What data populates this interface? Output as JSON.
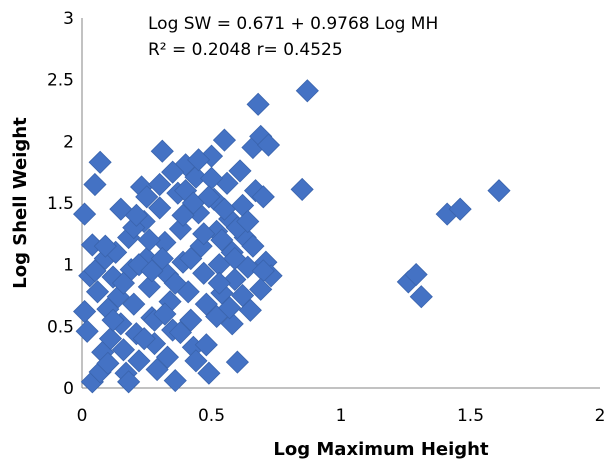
{
  "chart_data": {
    "type": "scatter",
    "title": "",
    "xlabel": "Log Maximum Height",
    "ylabel": "Log Shell Weight",
    "xlim": [
      0,
      2
    ],
    "ylim": [
      0,
      3
    ],
    "x_ticks": [
      "0",
      "0.5",
      "1",
      "1.5",
      "2"
    ],
    "y_ticks": [
      "0",
      "0.5",
      "1",
      "1.5",
      "2",
      "2.5",
      "3"
    ],
    "grid": false,
    "legend": "none",
    "marker": "diamond",
    "color": "#4472C4",
    "annotations": {
      "equation": "Log  SW = 0.671 + 0.9768 Log MH",
      "stats": "R² = 0.2048 r= 0.4525"
    },
    "series": [
      {
        "points": [
          [
            0.01,
            1.41
          ],
          [
            0.03,
            0.91
          ],
          [
            0.01,
            0.62
          ],
          [
            0.02,
            0.46
          ],
          [
            0.04,
            0.05
          ],
          [
            0.05,
            1.65
          ],
          [
            0.07,
            1.83
          ],
          [
            0.04,
            1.16
          ],
          [
            0.06,
            0.78
          ],
          [
            0.08,
            0.29
          ],
          [
            0.07,
            0.13
          ],
          [
            0.09,
            1.05
          ],
          [
            0.1,
            0.64
          ],
          [
            0.11,
            0.4
          ],
          [
            0.12,
            0.9
          ],
          [
            0.13,
            1.1
          ],
          [
            0.14,
            0.74
          ],
          [
            0.15,
            0.52
          ],
          [
            0.16,
            0.31
          ],
          [
            0.17,
            0.12
          ],
          [
            0.18,
            1.22
          ],
          [
            0.19,
            0.96
          ],
          [
            0.2,
            0.68
          ],
          [
            0.21,
            0.44
          ],
          [
            0.22,
            0.22
          ],
          [
            0.23,
            1.63
          ],
          [
            0.24,
            1.35
          ],
          [
            0.25,
            1.05
          ],
          [
            0.26,
            0.82
          ],
          [
            0.27,
            0.57
          ],
          [
            0.28,
            0.36
          ],
          [
            0.29,
            0.15
          ],
          [
            0.3,
            1.46
          ],
          [
            0.31,
            1.92
          ],
          [
            0.32,
            1.18
          ],
          [
            0.33,
            0.92
          ],
          [
            0.34,
            0.7
          ],
          [
            0.35,
            0.47
          ],
          [
            0.36,
            0.06
          ],
          [
            0.37,
            1.58
          ],
          [
            0.38,
            1.29
          ],
          [
            0.39,
            1.02
          ],
          [
            0.4,
            1.81
          ],
          [
            0.41,
            0.78
          ],
          [
            0.42,
            0.55
          ],
          [
            0.43,
            0.33
          ],
          [
            0.44,
            1.71
          ],
          [
            0.45,
            1.42
          ],
          [
            0.46,
            1.15
          ],
          [
            0.47,
            0.93
          ],
          [
            0.48,
            0.68
          ],
          [
            0.49,
            0.12
          ],
          [
            0.5,
            1.88
          ],
          [
            0.51,
            1.53
          ],
          [
            0.52,
            1.27
          ],
          [
            0.53,
            1.0
          ],
          [
            0.54,
            0.77
          ],
          [
            0.55,
            2.01
          ],
          [
            0.56,
            1.66
          ],
          [
            0.57,
            1.37
          ],
          [
            0.58,
            1.1
          ],
          [
            0.59,
            0.88
          ],
          [
            0.6,
            0.21
          ],
          [
            0.61,
            1.76
          ],
          [
            0.62,
            1.48
          ],
          [
            0.63,
            1.22
          ],
          [
            0.64,
            0.98
          ],
          [
            0.65,
            0.63
          ],
          [
            0.66,
            1.95
          ],
          [
            0.67,
            1.6
          ],
          [
            0.68,
            2.3
          ],
          [
            0.69,
            2.04
          ],
          [
            0.7,
            1.55
          ],
          [
            0.71,
            1.02
          ],
          [
            0.72,
            1.97
          ],
          [
            0.73,
            0.91
          ],
          [
            0.85,
            1.61
          ],
          [
            0.87,
            2.41
          ],
          [
            0.15,
            1.45
          ],
          [
            0.2,
            1.3
          ],
          [
            0.25,
            1.55
          ],
          [
            0.3,
            1.65
          ],
          [
            0.35,
            1.75
          ],
          [
            0.4,
            1.6
          ],
          [
            0.45,
            1.85
          ],
          [
            0.5,
            1.7
          ],
          [
            0.55,
            1.45
          ],
          [
            0.6,
            1.3
          ],
          [
            0.1,
            0.2
          ],
          [
            0.18,
            0.05
          ],
          [
            0.24,
            0.4
          ],
          [
            0.28,
            0.55
          ],
          [
            0.33,
            0.25
          ],
          [
            0.38,
            0.45
          ],
          [
            0.44,
            0.22
          ],
          [
            0.48,
            0.35
          ],
          [
            0.52,
            0.58
          ],
          [
            0.58,
            0.52
          ],
          [
            0.05,
            0.95
          ],
          [
            0.09,
            1.15
          ],
          [
            0.12,
            0.55
          ],
          [
            0.16,
            0.85
          ],
          [
            0.22,
            1.0
          ],
          [
            0.26,
            1.2
          ],
          [
            0.31,
            1.05
          ],
          [
            0.36,
            0.85
          ],
          [
            0.42,
            1.05
          ],
          [
            0.47,
            1.25
          ],
          [
            0.53,
            0.85
          ],
          [
            0.57,
            0.65
          ],
          [
            0.62,
            0.75
          ],
          [
            0.66,
            1.15
          ],
          [
            0.7,
            0.95
          ],
          [
            0.21,
            1.4
          ],
          [
            0.27,
            0.95
          ],
          [
            0.32,
            0.6
          ],
          [
            0.39,
            1.4
          ],
          [
            0.43,
            1.5
          ],
          [
            0.49,
            1.55
          ],
          [
            0.54,
            1.2
          ],
          [
            0.59,
            1.05
          ],
          [
            0.64,
            1.35
          ],
          [
            0.69,
            0.8
          ],
          [
            1.26,
            0.86
          ],
          [
            1.29,
            0.92
          ],
          [
            1.31,
            0.74
          ],
          [
            1.41,
            1.41
          ],
          [
            1.46,
            1.45
          ],
          [
            1.61,
            1.6
          ]
        ]
      }
    ]
  }
}
